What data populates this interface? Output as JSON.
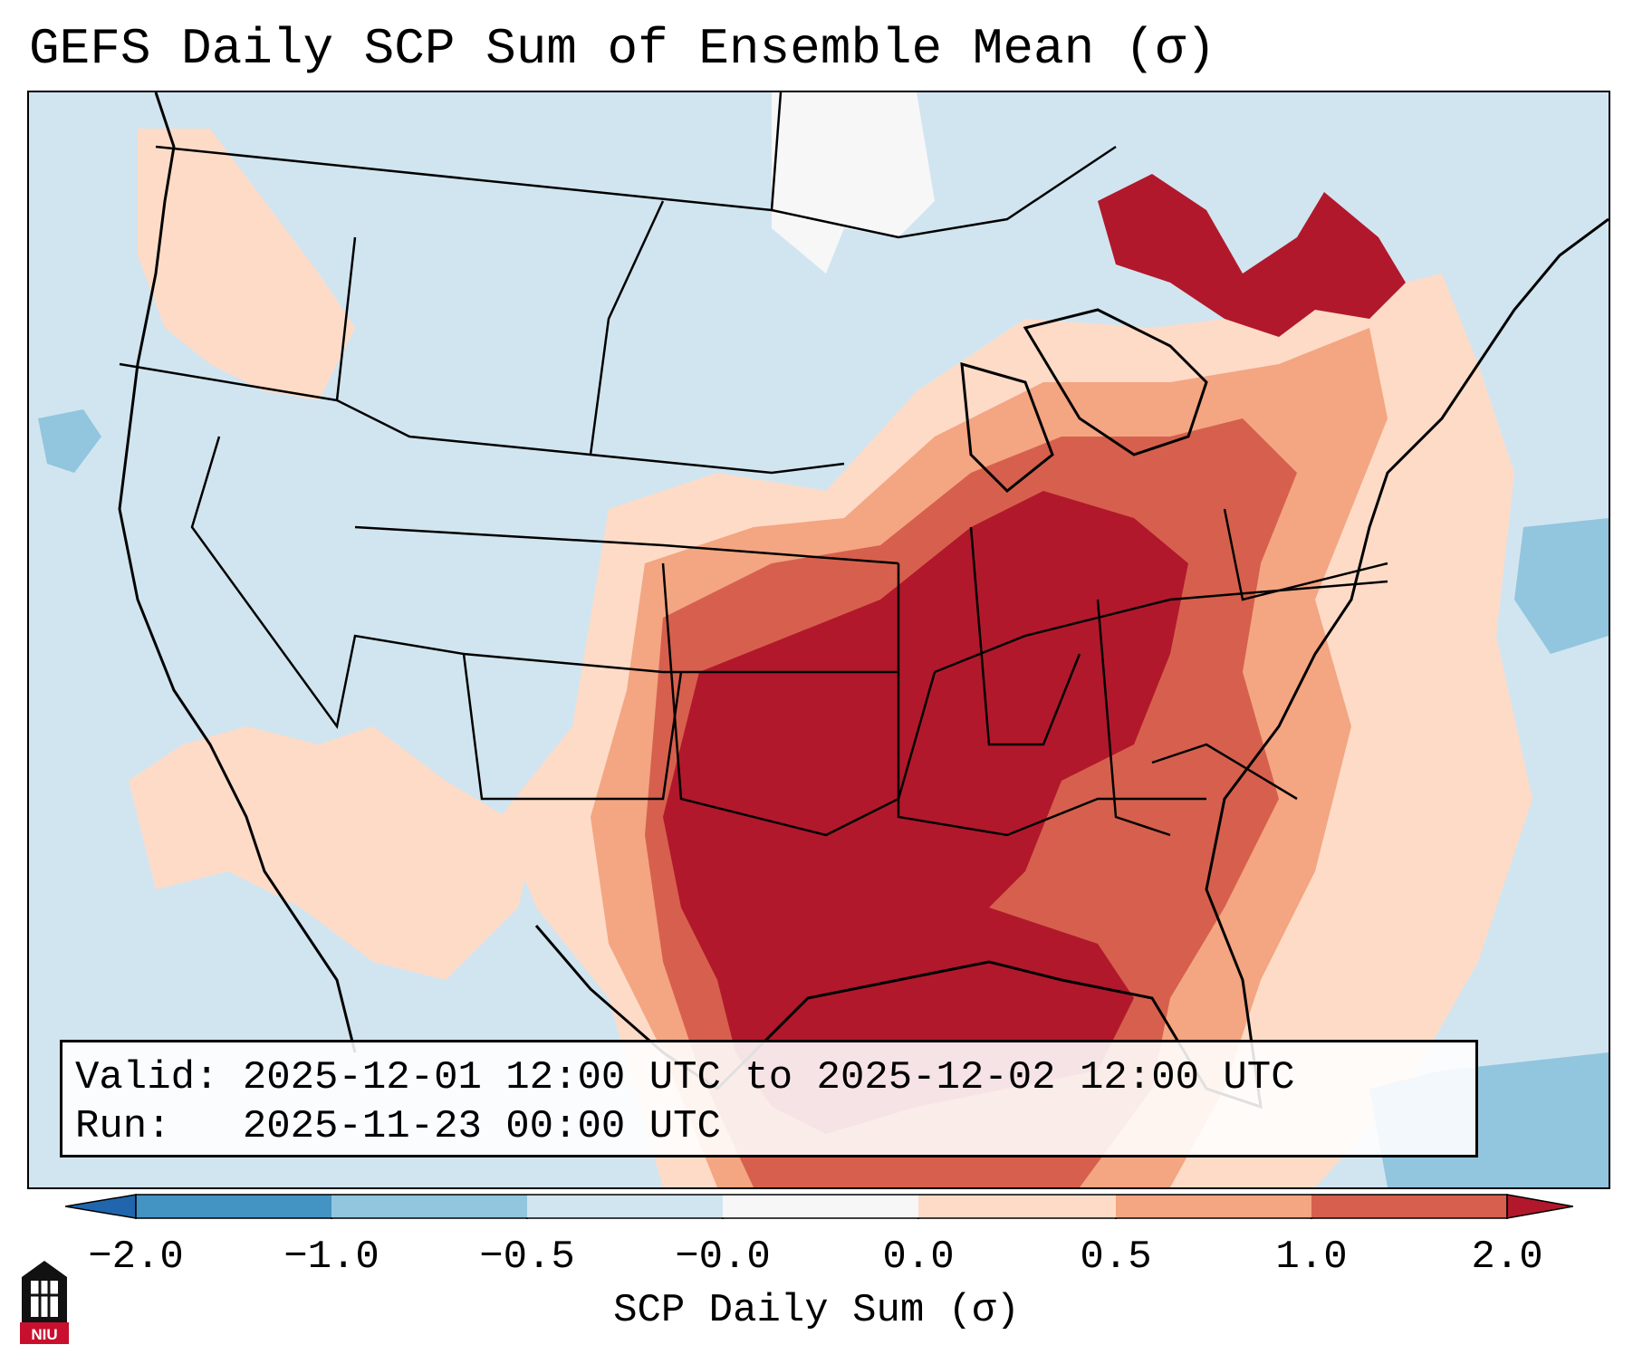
{
  "title": "GEFS Daily SCP Sum of Ensemble Mean (σ)",
  "info": {
    "valid_line": "Valid: 2025-12-01 12:00 UTC to 2025-12-02 12:00 UTC",
    "run_line": "Run:   2025-11-23 00:00 UTC"
  },
  "colorbar": {
    "label": "SCP Daily Sum (σ)",
    "ticks": [
      "−2.0",
      "−1.0",
      "−0.5",
      "−0.0",
      "0.0",
      "0.5",
      "1.0",
      "2.0"
    ],
    "colors": [
      "#2166ac",
      "#4393c3",
      "#92c5de",
      "#d1e5f0",
      "#f7f7f7",
      "#fddbc7",
      "#f4a582",
      "#d6604d",
      "#b2182b"
    ],
    "extend": "both"
  },
  "logo": {
    "text": "NIU"
  },
  "colors": {
    "ocean_background": "#d1e5f0",
    "strong_positive": "#b2182b"
  }
}
